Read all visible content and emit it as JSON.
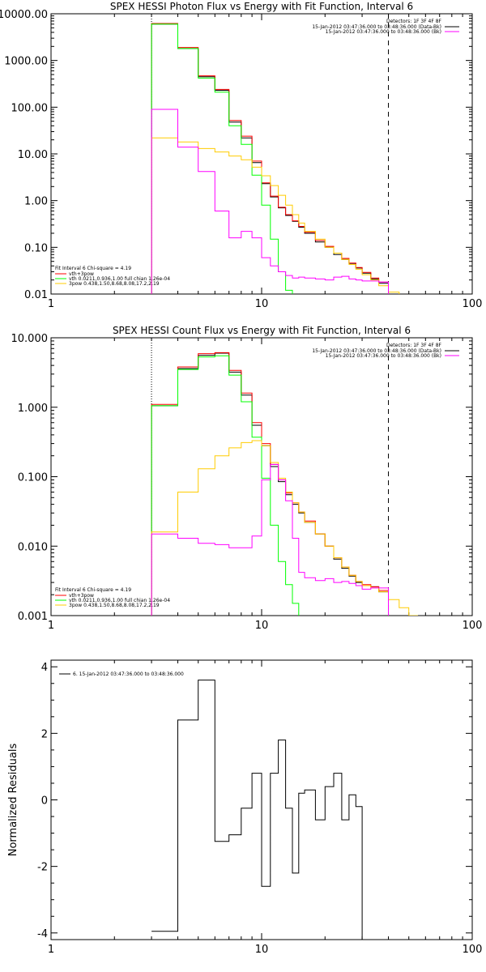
{
  "chart_data": [
    {
      "type": "line",
      "title": "SPEX HESSI Photon Flux vs Energy with Fit Function, Interval 6",
      "xscale": "log",
      "yscale": "log",
      "xlim": [
        1,
        100
      ],
      "ylim": [
        0.01,
        10000
      ],
      "xticks": [
        {
          "v": 1,
          "t": "1"
        },
        {
          "v": 10,
          "t": "10"
        },
        {
          "v": 100,
          "t": "100"
        }
      ],
      "yticks": [
        {
          "v": 10000,
          "t": "10000.00"
        },
        {
          "v": 1000,
          "t": "1000.00"
        },
        {
          "v": 100,
          "t": "100.00"
        },
        {
          "v": 10,
          "t": "10.00"
        },
        {
          "v": 1,
          "t": "1.00"
        },
        {
          "v": 0.1,
          "t": "0.10"
        },
        {
          "v": 0.01,
          "t": "0.01"
        }
      ],
      "vlines": [
        {
          "x": 3,
          "style": "dotted"
        },
        {
          "x": 40,
          "style": "dashed"
        }
      ],
      "legend_top": {
        "header": "Detectors: 1F 3F 4F 8F",
        "entries": [
          {
            "text": "15-Jan-2012 03:47:36.000 to 03:48:36.000 (Data-Bk)",
            "color": "#000000"
          },
          {
            "text": "15-Jan-2012 03:47:36.000 to 03:48:36.000 (Bk)",
            "color": "#ff00ff"
          }
        ]
      },
      "legend_bottom": {
        "header": "Fit Interval  6   Chi-square = 4.19",
        "entries": [
          {
            "text": "vth+3pow",
            "color": "#ff0000"
          },
          {
            "text": "vth 0.0211,0.936,1.00  full chian 1.26e-04",
            "color": "#00ff00"
          },
          {
            "text": "3pow 0.438,1.50,8.68,8.08,17.2,2.19",
            "color": "#ffcc00"
          }
        ]
      },
      "x_edges": [
        3,
        4,
        5,
        6,
        7,
        8,
        9,
        10,
        11,
        12,
        13,
        14,
        15,
        16,
        18,
        20,
        22,
        24,
        26,
        28,
        30,
        33,
        36,
        40,
        45,
        50
      ],
      "series": [
        {
          "name": "Data-Bk",
          "color": "#000000",
          "values": [
            6000,
            1800,
            450,
            230,
            48,
            22,
            6.5,
            2.3,
            1.2,
            0.7,
            0.48,
            0.36,
            0.27,
            0.2,
            0.13,
            0.1,
            0.07,
            0.055,
            0.045,
            0.036,
            0.028,
            0.021,
            0.017,
            null,
            null
          ]
        },
        {
          "name": "vth+3pow",
          "color": "#ff0000",
          "values": [
            6200,
            1900,
            470,
            240,
            52,
            24,
            7,
            2.4,
            1.25,
            0.72,
            0.5,
            0.37,
            0.28,
            0.21,
            0.14,
            0.105,
            0.075,
            0.058,
            0.046,
            0.037,
            0.029,
            0.022,
            0.018,
            null,
            null
          ]
        },
        {
          "name": "vth",
          "color": "#00ff00",
          "values": [
            6000,
            1800,
            420,
            210,
            40,
            16,
            3.5,
            0.8,
            0.15,
            0.03,
            0.012,
            0.005,
            null,
            null,
            null,
            null,
            null,
            null,
            null,
            null,
            null,
            null,
            null,
            null,
            null
          ]
        },
        {
          "name": "3pow",
          "color": "#ffcc00",
          "values": [
            22,
            18,
            13,
            11,
            9,
            7.5,
            5.2,
            3.4,
            2.1,
            1.3,
            0.8,
            0.5,
            0.33,
            0.22,
            0.15,
            0.1,
            0.075,
            0.055,
            0.043,
            0.034,
            0.026,
            0.02,
            0.015,
            0.011,
            0.008
          ]
        },
        {
          "name": "Bk",
          "color": "#ff00ff",
          "values": [
            90,
            14,
            4.2,
            0.6,
            0.16,
            0.22,
            0.16,
            0.06,
            0.04,
            0.03,
            0.025,
            0.022,
            0.023,
            0.022,
            0.021,
            0.02,
            0.023,
            0.024,
            0.021,
            0.02,
            0.019,
            0.019,
            0.018,
            null,
            null
          ]
        }
      ]
    },
    {
      "type": "line",
      "title": "SPEX HESSI Count Flux vs Energy with Fit Function, Interval 6",
      "xscale": "log",
      "yscale": "log",
      "xlim": [
        1,
        100
      ],
      "ylim": [
        0.001,
        10
      ],
      "xticks": [
        {
          "v": 1,
          "t": "1"
        },
        {
          "v": 10,
          "t": "10"
        },
        {
          "v": 100,
          "t": "100"
        }
      ],
      "yticks": [
        {
          "v": 10,
          "t": "10.000"
        },
        {
          "v": 1,
          "t": "1.000"
        },
        {
          "v": 0.1,
          "t": "0.100"
        },
        {
          "v": 0.01,
          "t": "0.010"
        },
        {
          "v": 0.001,
          "t": "0.001"
        }
      ],
      "vlines": [
        {
          "x": 3,
          "style": "dotted"
        },
        {
          "x": 40,
          "style": "dashed"
        }
      ],
      "legend_top": {
        "header": "Detectors: 1F 3F 4F 8F",
        "entries": [
          {
            "text": "15-Jan-2012 03:47:36.000 to 03:48:36.000 (Data-Bk)",
            "color": "#000000"
          },
          {
            "text": "15-Jan-2012 03:47:36.000 to 03:48:36.000 (Bk)",
            "color": "#ff00ff"
          }
        ]
      },
      "legend_bottom": {
        "header": "Fit Interval  6   Chi-square = 4.19",
        "entries": [
          {
            "text": "vth+3pow",
            "color": "#ff0000"
          },
          {
            "text": "vth 0.0211,0.936,1.00  full chian 1.26e-04",
            "color": "#00ff00"
          },
          {
            "text": "3pow 0.438,1.50,8.68,8.08,17.2,2.19",
            "color": "#ffcc00"
          }
        ]
      },
      "x_edges": [
        3,
        4,
        5,
        6,
        7,
        8,
        9,
        10,
        11,
        12,
        13,
        14,
        15,
        16,
        18,
        20,
        22,
        24,
        26,
        28,
        30,
        33,
        36,
        40,
        45,
        50,
        55,
        60
      ],
      "series": [
        {
          "name": "Data-Bk",
          "color": "#000000",
          "values": [
            1.05,
            3.6,
            5.6,
            6.0,
            3.2,
            1.5,
            0.55,
            0.28,
            0.14,
            0.085,
            0.055,
            0.04,
            0.03,
            0.022,
            0.015,
            0.01,
            0.0065,
            0.0048,
            0.0037,
            0.003,
            0.0027,
            0.0026,
            0.0022,
            null,
            null,
            null,
            null
          ]
        },
        {
          "name": "vth+3pow",
          "color": "#ff0000",
          "values": [
            1.1,
            3.8,
            5.9,
            6.1,
            3.4,
            1.6,
            0.6,
            0.3,
            0.15,
            0.09,
            0.058,
            0.042,
            0.031,
            0.023,
            0.015,
            0.01,
            0.0068,
            0.005,
            0.0038,
            0.0031,
            0.0028,
            0.0026,
            0.0023,
            null,
            null,
            null,
            null
          ]
        },
        {
          "name": "vth",
          "color": "#00ff00",
          "values": [
            1.05,
            3.5,
            5.3,
            5.5,
            2.9,
            1.2,
            0.37,
            0.095,
            0.02,
            0.006,
            0.0028,
            0.0015,
            null,
            null,
            null,
            null,
            null,
            null,
            null,
            null,
            null,
            null,
            null,
            null,
            null,
            null,
            null
          ]
        },
        {
          "name": "3pow",
          "color": "#ffcc00",
          "values": [
            0.016,
            0.06,
            0.13,
            0.2,
            0.26,
            0.31,
            0.33,
            0.28,
            0.16,
            0.095,
            0.06,
            0.042,
            0.031,
            0.022,
            0.015,
            0.01,
            0.0068,
            0.005,
            0.0038,
            0.0031,
            0.0027,
            0.0025,
            0.0022,
            0.0017,
            0.0013,
            0.001,
            0.0008
          ]
        },
        {
          "name": "Bk",
          "color": "#ff00ff",
          "values": [
            0.015,
            0.013,
            0.011,
            0.0105,
            0.0095,
            0.0095,
            0.014,
            0.09,
            0.15,
            0.09,
            0.045,
            0.013,
            0.0042,
            0.0035,
            0.0032,
            0.0034,
            0.003,
            0.0031,
            0.0029,
            0.0027,
            0.0024,
            0.0025,
            0.0025,
            null,
            null,
            null,
            null
          ]
        }
      ]
    },
    {
      "type": "line",
      "title": "",
      "xscale": "log",
      "yscale": "linear",
      "xlim": [
        1,
        100
      ],
      "ylim": [
        -4.2,
        4.2
      ],
      "ylabel": "Normalized Residuals",
      "xticks": [
        {
          "v": 1,
          "t": "1"
        },
        {
          "v": 10,
          "t": "10"
        },
        {
          "v": 100,
          "t": "100"
        }
      ],
      "yticks": [
        {
          "v": 4,
          "t": "4"
        },
        {
          "v": 2,
          "t": "2"
        },
        {
          "v": 0,
          "t": "0"
        },
        {
          "v": -2,
          "t": "-2"
        },
        {
          "v": -4,
          "t": "-4"
        }
      ],
      "legend_top": {
        "header": "",
        "entries": [
          {
            "text": "6. 15-Jan-2012 03:47:36.000 to 03:48:36.000",
            "color": "#000000"
          }
        ]
      },
      "x_edges": [
        3,
        4,
        5,
        6,
        7,
        8,
        9,
        10,
        11,
        12,
        13,
        14,
        15,
        16,
        18,
        20,
        22,
        24,
        26,
        28,
        30,
        33,
        36,
        40
      ],
      "series": [
        {
          "name": "residuals",
          "color": "#000000",
          "values": [
            -3.95,
            2.4,
            3.6,
            -1.25,
            -1.05,
            -0.25,
            0.8,
            -2.6,
            0.8,
            1.8,
            -0.25,
            -2.2,
            0.2,
            0.3,
            -0.6,
            0.4,
            0.8,
            -0.6,
            0.15,
            -0.2,
            -4.2,
            -4.2,
            -4.2
          ]
        }
      ]
    }
  ]
}
